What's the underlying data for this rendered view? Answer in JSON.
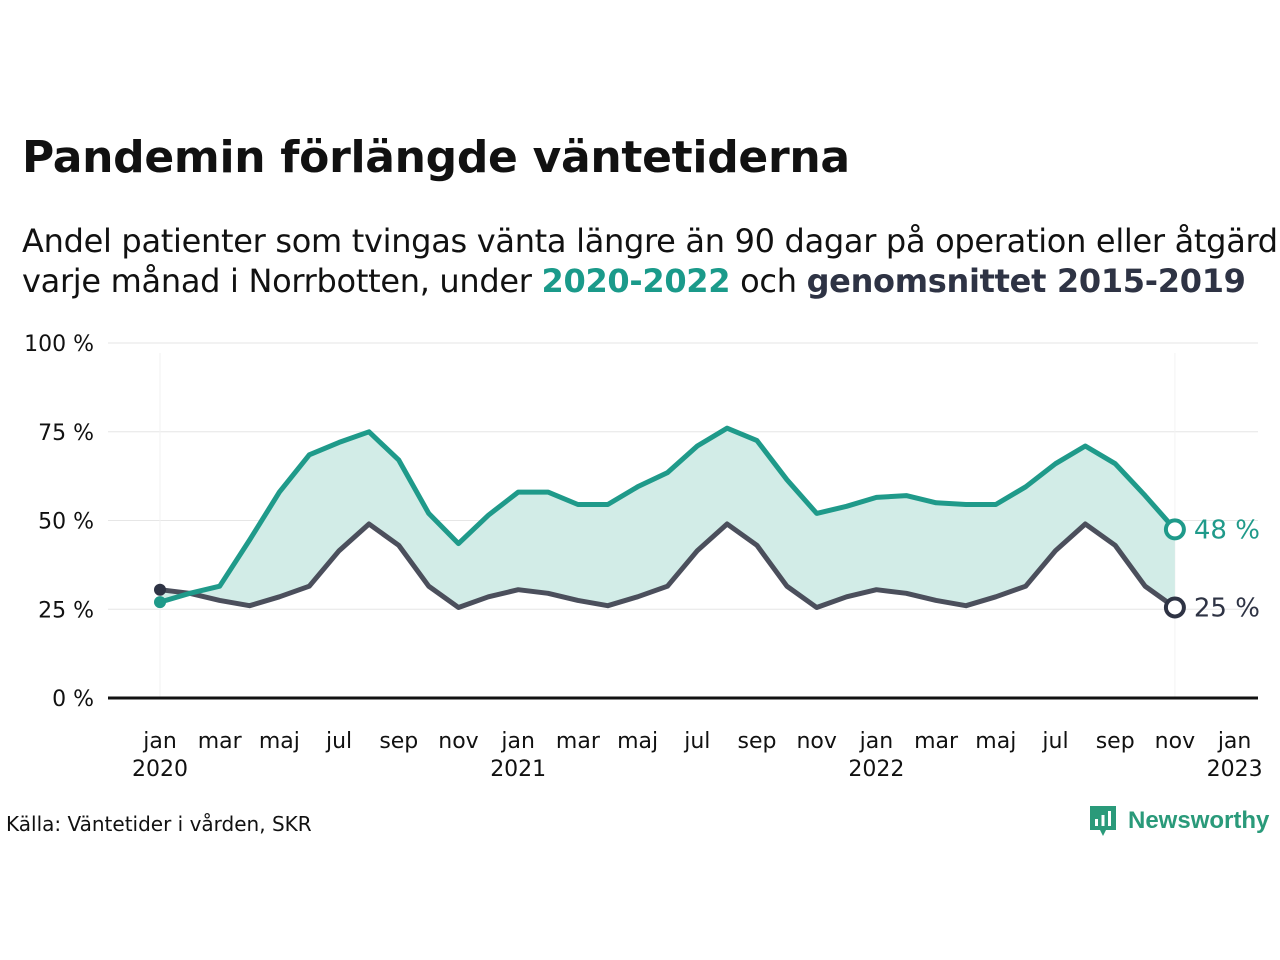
{
  "title": "Pandemin förlängde väntetiderna",
  "subtitle": {
    "line1": "Andel patienter som tvingas vänta längre än 90 dagar på operation eller åtgärd",
    "line2_prefix": "varje månad i Norrbotten, under ",
    "highlight_current": "2020-2022",
    "line2_middle": " och ",
    "highlight_average": "genomsnittet 2015-2019"
  },
  "source": "Källa: Väntetider i vården, SKR",
  "brand": "Newsworthy",
  "colors": {
    "current": "#1f9a8a",
    "average": "#4b4f5c",
    "fill": "#d2ece7",
    "grid": "#e6e6e6",
    "axis": "#111111"
  },
  "chart_data": {
    "type": "line",
    "ylim": [
      0,
      100
    ],
    "yticks": [
      {
        "value": 0,
        "label": "0 %"
      },
      {
        "value": 25,
        "label": "25 %"
      },
      {
        "value": 50,
        "label": "50 %"
      },
      {
        "value": 75,
        "label": "75 %"
      },
      {
        "value": 100,
        "label": "100 %"
      }
    ],
    "xticks": [
      {
        "month": "2020-01",
        "label": "jan",
        "year": "2020"
      },
      {
        "month": "2020-03",
        "label": "mar",
        "year": ""
      },
      {
        "month": "2020-05",
        "label": "maj",
        "year": ""
      },
      {
        "month": "2020-07",
        "label": "jul",
        "year": ""
      },
      {
        "month": "2020-09",
        "label": "sep",
        "year": ""
      },
      {
        "month": "2020-11",
        "label": "nov",
        "year": ""
      },
      {
        "month": "2021-01",
        "label": "jan",
        "year": "2021"
      },
      {
        "month": "2021-03",
        "label": "mar",
        "year": ""
      },
      {
        "month": "2021-05",
        "label": "maj",
        "year": ""
      },
      {
        "month": "2021-07",
        "label": "jul",
        "year": ""
      },
      {
        "month": "2021-09",
        "label": "sep",
        "year": ""
      },
      {
        "month": "2021-11",
        "label": "nov",
        "year": ""
      },
      {
        "month": "2022-01",
        "label": "jan",
        "year": "2022"
      },
      {
        "month": "2022-03",
        "label": "mar",
        "year": ""
      },
      {
        "month": "2022-05",
        "label": "maj",
        "year": ""
      },
      {
        "month": "2022-07",
        "label": "jul",
        "year": ""
      },
      {
        "month": "2022-09",
        "label": "sep",
        "year": ""
      },
      {
        "month": "2022-11",
        "label": "nov",
        "year": ""
      },
      {
        "month": "2023-01",
        "label": "jan",
        "year": "2023"
      }
    ],
    "months": [
      "2020-01",
      "2020-02",
      "2020-03",
      "2020-04",
      "2020-05",
      "2020-06",
      "2020-07",
      "2020-08",
      "2020-09",
      "2020-10",
      "2020-11",
      "2020-12",
      "2021-01",
      "2021-02",
      "2021-03",
      "2021-04",
      "2021-05",
      "2021-06",
      "2021-07",
      "2021-08",
      "2021-09",
      "2021-10",
      "2021-11",
      "2021-12",
      "2022-01",
      "2022-02",
      "2022-03",
      "2022-04",
      "2022-05",
      "2022-06",
      "2022-07",
      "2022-08",
      "2022-09",
      "2022-10",
      "2022-11",
      "2022-12"
    ],
    "series": [
      {
        "name": "2020-2022",
        "key": "current",
        "values": [
          27,
          29.5,
          31.5,
          44.5,
          58,
          68.5,
          72,
          75,
          67,
          52,
          43.5,
          51.5,
          58,
          58,
          54.5,
          54.5,
          59.5,
          63.5,
          71,
          76,
          72.5,
          61.5,
          52,
          54,
          56.5,
          57,
          55,
          54.5,
          54.5,
          59.5,
          66,
          71,
          66,
          57,
          47.5
        ],
        "end_label": "48 %"
      },
      {
        "name": "genomsnittet 2015-2019",
        "key": "average",
        "values": [
          30.5,
          29.5,
          27.5,
          26,
          28.5,
          31.5,
          41.5,
          49,
          43,
          31.5,
          25.5,
          28.5,
          30.5,
          29.5,
          27.5,
          26,
          28.5,
          31.5,
          41.5,
          49,
          43,
          31.5,
          25.5,
          28.5,
          30.5,
          29.5,
          27.5,
          26,
          28.5,
          31.5,
          41.5,
          49,
          43,
          31.5,
          25.5
        ],
        "end_label": "25 %"
      }
    ],
    "grid": true,
    "legend": "none"
  }
}
